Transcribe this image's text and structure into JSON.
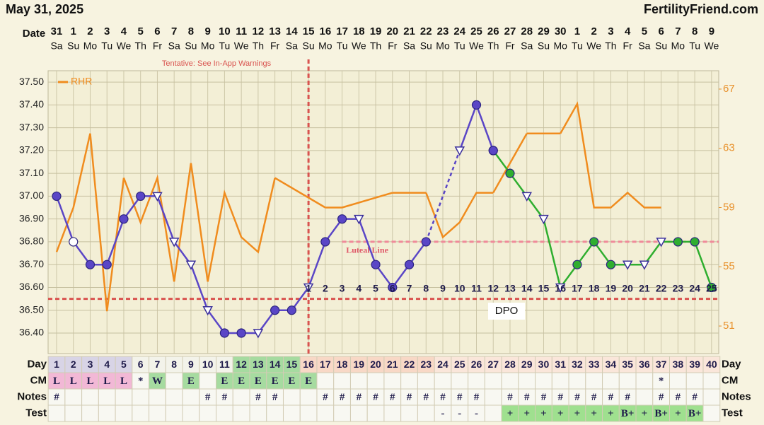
{
  "header": {
    "date": "May 31, 2025",
    "site": "FertilityFriend.com"
  },
  "chart_data": {
    "type": "line",
    "date_label": "Date",
    "notice": "Tentative: See In-App Warnings",
    "categories": [
      "31",
      "1",
      "2",
      "3",
      "4",
      "5",
      "6",
      "7",
      "8",
      "9",
      "10",
      "11",
      "12",
      "13",
      "14",
      "15",
      "16",
      "17",
      "18",
      "19",
      "20",
      "21",
      "22",
      "23",
      "24",
      "25",
      "26",
      "27",
      "28",
      "29",
      "30",
      "1",
      "2",
      "3",
      "4",
      "5",
      "6",
      "7",
      "8",
      "9"
    ],
    "weekdays": [
      "Sa",
      "Su",
      "Mo",
      "Tu",
      "We",
      "Th",
      "Fr",
      "Sa",
      "Su",
      "Mo",
      "Tu",
      "We",
      "Th",
      "Fr",
      "Sa",
      "Su",
      "Mo",
      "Tu",
      "We",
      "Th",
      "Fr",
      "Sa",
      "Su",
      "Mo",
      "Tu",
      "We",
      "Th",
      "Fr",
      "Sa",
      "Su",
      "Mo",
      "Tu",
      "We",
      "Th",
      "Fr",
      "Sa",
      "Su",
      "Mo",
      "Tu",
      "We"
    ],
    "series": [
      {
        "color": "#5a46c6",
        "gap_style": "dashed",
        "values": [
          37.0,
          36.8,
          36.7,
          36.7,
          36.9,
          37.0,
          37.0,
          36.8,
          36.7,
          36.5,
          36.4,
          36.4,
          36.4,
          36.5,
          36.5,
          36.6,
          36.8,
          36.9,
          36.9,
          36.7,
          36.6,
          36.7,
          36.8,
          null,
          37.2,
          37.4,
          37.2,
          null,
          null,
          null,
          null,
          null,
          null,
          null,
          null,
          null,
          null,
          null,
          null,
          null
        ],
        "markers": [
          "filled",
          "open",
          "filled",
          "filled",
          "filled",
          "filled",
          "triangle",
          "triangle",
          "triangle",
          "triangle",
          "filled",
          "filled",
          "triangle",
          "filled",
          "filled",
          "triangle",
          "filled",
          "filled",
          "triangle",
          "filled",
          "filled",
          "filled",
          "filled",
          null,
          "triangle",
          "filled",
          "filled",
          null,
          null,
          null,
          null,
          null,
          null,
          null,
          null,
          null,
          null,
          null,
          null,
          null
        ]
      },
      {
        "color": "#2fae2f",
        "gap_style": "dashed",
        "values": [
          null,
          null,
          null,
          null,
          null,
          null,
          null,
          null,
          null,
          null,
          null,
          null,
          null,
          null,
          null,
          null,
          null,
          null,
          null,
          null,
          null,
          null,
          null,
          null,
          null,
          null,
          37.2,
          37.1,
          37.0,
          36.9,
          36.6,
          36.7,
          36.8,
          36.7,
          36.7,
          36.7,
          36.8,
          36.8,
          36.8,
          36.6
        ],
        "markers": [
          null,
          null,
          null,
          null,
          null,
          null,
          null,
          null,
          null,
          null,
          null,
          null,
          null,
          null,
          null,
          null,
          null,
          null,
          null,
          null,
          null,
          null,
          null,
          null,
          null,
          null,
          "filled",
          "filled",
          "triangle",
          "triangle",
          "triangle",
          "filled",
          "filled",
          "filled",
          "triangle",
          "triangle",
          "triangle",
          "filled",
          "filled",
          "filled"
        ]
      },
      {
        "name": "RHR",
        "color": "#f08c1e",
        "axis": "y2",
        "gap_style": "solid",
        "values": [
          56,
          59,
          64,
          52,
          61,
          58,
          61,
          54,
          62,
          54,
          60,
          57,
          56,
          61,
          null,
          null,
          59,
          59,
          null,
          null,
          60,
          null,
          60,
          57,
          58,
          60,
          60,
          null,
          64,
          null,
          64,
          66,
          59,
          59,
          60,
          59,
          59,
          null,
          null,
          null
        ]
      }
    ],
    "ylim": [
      36.31,
      37.55
    ],
    "yticks": [
      {
        "value": 37.5,
        "label": "37.50"
      },
      {
        "value": 37.4,
        "label": "37.40"
      },
      {
        "value": 37.3,
        "label": "37.30"
      },
      {
        "value": 37.2,
        "label": "37.20"
      },
      {
        "value": 37.1,
        "label": "37.10"
      },
      {
        "value": 37.0,
        "label": "37.00"
      },
      {
        "value": 36.9,
        "label": "36.90"
      },
      {
        "value": 36.8,
        "label": "36.80"
      },
      {
        "value": 36.7,
        "label": "36.70"
      },
      {
        "value": 36.6,
        "label": "36.60"
      },
      {
        "value": 36.5,
        "label": "36.50"
      },
      {
        "value": 36.4,
        "label": "36.40"
      }
    ],
    "y2lim": [
      49.14,
      68.24
    ],
    "y2ticks": [
      51,
      55,
      59,
      63,
      67
    ],
    "grid": true,
    "coverline": 36.55,
    "ovulation_index": 15,
    "luteal_line": {
      "label": "Luteal Line",
      "value": 36.8
    },
    "dpo_label": "DPO",
    "dpo": [
      null,
      null,
      null,
      null,
      null,
      null,
      null,
      null,
      null,
      null,
      null,
      null,
      null,
      null,
      null,
      1,
      2,
      3,
      4,
      5,
      6,
      7,
      8,
      9,
      10,
      11,
      12,
      13,
      14,
      15,
      16,
      17,
      18,
      19,
      20,
      21,
      22,
      23,
      24,
      25
    ],
    "table": {
      "rows": [
        {
          "label": "Day",
          "values": [
            1,
            2,
            3,
            4,
            5,
            6,
            7,
            8,
            9,
            10,
            11,
            12,
            13,
            14,
            15,
            16,
            17,
            18,
            19,
            20,
            21,
            22,
            23,
            24,
            25,
            26,
            27,
            28,
            29,
            30,
            31,
            32,
            33,
            34,
            35,
            36,
            37,
            38,
            39,
            40
          ]
        },
        {
          "label": "CM",
          "values": [
            "L",
            "L",
            "L",
            "L",
            "L",
            "*",
            "W",
            null,
            "E",
            null,
            "E",
            "E",
            "E",
            "E",
            "E",
            "E",
            null,
            null,
            null,
            null,
            null,
            null,
            null,
            null,
            null,
            null,
            null,
            null,
            null,
            null,
            null,
            null,
            null,
            null,
            null,
            null,
            "*",
            null,
            null,
            null
          ]
        },
        {
          "label": "Notes",
          "values": [
            "#",
            null,
            null,
            null,
            null,
            null,
            null,
            null,
            null,
            "#",
            "#",
            null,
            "#",
            "#",
            null,
            null,
            "#",
            "#",
            "#",
            "#",
            "#",
            "#",
            "#",
            "#",
            "#",
            "#",
            null,
            "#",
            "#",
            "#",
            "#",
            "#",
            "#",
            "#",
            "#",
            null,
            "#",
            "#",
            "#",
            null
          ]
        },
        {
          "label": "Test",
          "values": [
            null,
            null,
            null,
            null,
            null,
            null,
            null,
            null,
            null,
            null,
            null,
            null,
            null,
            null,
            null,
            null,
            null,
            null,
            null,
            null,
            null,
            null,
            null,
            "-",
            "-",
            "-",
            null,
            "+",
            "+",
            "+",
            "+",
            "+",
            "+",
            "+",
            "B+",
            "+",
            "B+",
            "+",
            "B+",
            null
          ]
        }
      ]
    }
  }
}
